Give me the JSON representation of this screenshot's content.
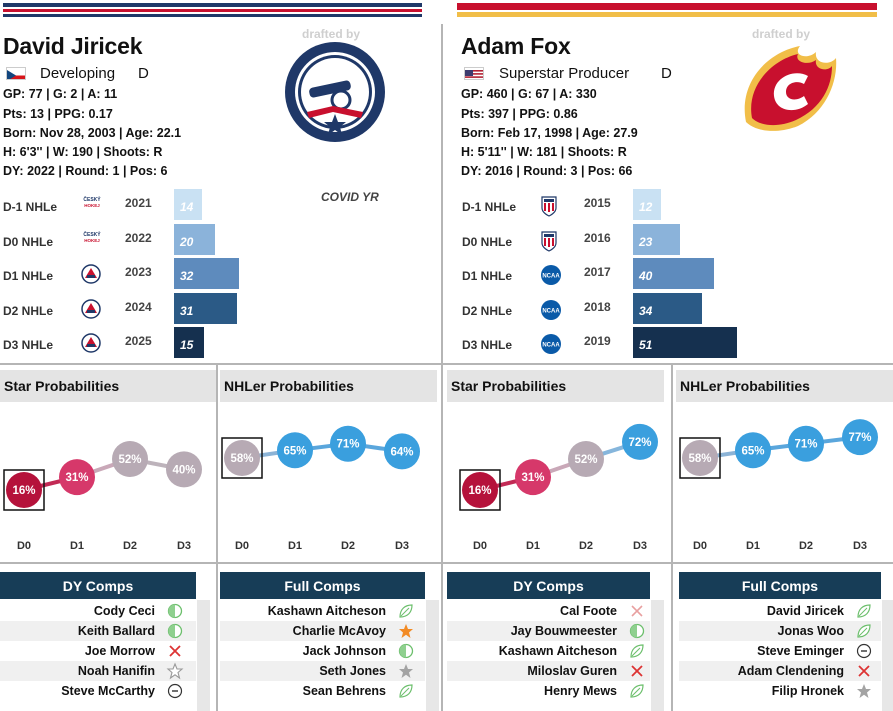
{
  "left": {
    "name": "David Jiricek",
    "flag": "czech-flag",
    "archetype": "Developing",
    "position": "D",
    "stats": [
      "GP: 77 | G: 2 | A: 11",
      "Pts: 13 | PPG: 0.17",
      "Born: Nov 28, 2003 | Age: 22.1",
      "H: 6'3'' | W: 190 | Shoots: R",
      "DY: 2022 | Round: 1 | Pos: 6"
    ],
    "drafted_by": "drafted by",
    "team_logo": "columbus-blue-jackets-logo",
    "note": "COVID YR",
    "nhle_rows": [
      {
        "label": "D-1 NHLe",
        "league": "czech-league-logo",
        "year": "2021",
        "value": 14
      },
      {
        "label": "D0 NHLe",
        "league": "czech-league-logo",
        "year": "2022",
        "value": 20
      },
      {
        "label": "D1 NHLe",
        "league": "ahl-logo",
        "year": "2023",
        "value": 32
      },
      {
        "label": "D2 NHLe",
        "league": "ahl-logo",
        "year": "2024",
        "value": 31
      },
      {
        "label": "D3 NHLe",
        "league": "ahl-logo",
        "year": "2025",
        "value": 15
      }
    ],
    "star_title": "Star Probabilities",
    "star": [
      {
        "d": "D0",
        "v": 16
      },
      {
        "d": "D1",
        "v": 31
      },
      {
        "d": "D2",
        "v": 52
      },
      {
        "d": "D3",
        "v": 40
      }
    ],
    "nhler_title": "NHLer Probabilities",
    "nhler": [
      {
        "d": "D0",
        "v": 58
      },
      {
        "d": "D1",
        "v": 65
      },
      {
        "d": "D2",
        "v": 71
      },
      {
        "d": "D3",
        "v": 64
      }
    ],
    "dy_title": "DY Comps",
    "dy_comps": [
      {
        "name": "Cody Ceci",
        "icon": "half-circle-icon"
      },
      {
        "name": "Keith Ballard",
        "icon": "half-circle-icon"
      },
      {
        "name": "Joe Morrow",
        "icon": "x-icon"
      },
      {
        "name": "Noah Hanifin",
        "icon": "star-outline-icon"
      },
      {
        "name": "Steve McCarthy",
        "icon": "minus-circle-icon"
      }
    ],
    "full_title": "Full Comps",
    "full_comps": [
      {
        "name": "Kashawn Aitcheson",
        "icon": "leaf-icon"
      },
      {
        "name": "Charlie McAvoy",
        "icon": "star-orange-icon"
      },
      {
        "name": "Jack Johnson",
        "icon": "half-circle-icon"
      },
      {
        "name": "Seth Jones",
        "icon": "star-gray-icon"
      },
      {
        "name": "Sean Behrens",
        "icon": "leaf-icon"
      }
    ]
  },
  "right": {
    "name": "Adam Fox",
    "flag": "usa-flag",
    "archetype": "Superstar Producer",
    "position": "D",
    "stats": [
      "GP: 460 | G: 67 | A: 330",
      "Pts: 397 | PPG: 0.86",
      "Born: Feb 17, 1998 | Age: 27.9",
      "H: 5'11'' | W: 181 | Shoots: R",
      "DY: 2016 | Round: 3 | Pos: 66"
    ],
    "drafted_by": "drafted by",
    "team_logo": "calgary-flames-logo",
    "nhle_rows": [
      {
        "label": "D-1 NHLe",
        "league": "usntdp-logo",
        "year": "2015",
        "value": 12
      },
      {
        "label": "D0 NHLe",
        "league": "usntdp-logo",
        "year": "2016",
        "value": 23
      },
      {
        "label": "D1 NHLe",
        "league": "ncaa-logo",
        "year": "2017",
        "value": 40
      },
      {
        "label": "D2 NHLe",
        "league": "ncaa-logo",
        "year": "2018",
        "value": 34
      },
      {
        "label": "D3 NHLe",
        "league": "ncaa-logo",
        "year": "2019",
        "value": 51
      }
    ],
    "star_title": "Star Probabilities",
    "star": [
      {
        "d": "D0",
        "v": 16
      },
      {
        "d": "D1",
        "v": 31
      },
      {
        "d": "D2",
        "v": 52
      },
      {
        "d": "D3",
        "v": 72
      }
    ],
    "nhler_title": "NHLer Probabilities",
    "nhler": [
      {
        "d": "D0",
        "v": 58
      },
      {
        "d": "D1",
        "v": 65
      },
      {
        "d": "D2",
        "v": 71
      },
      {
        "d": "D3",
        "v": 77
      }
    ],
    "dy_title": "DY Comps",
    "dy_comps": [
      {
        "name": "Cal Foote",
        "icon": "x-light-icon"
      },
      {
        "name": "Jay Bouwmeester",
        "icon": "half-circle-icon"
      },
      {
        "name": "Kashawn Aitcheson",
        "icon": "leaf-icon"
      },
      {
        "name": "Miloslav Guren",
        "icon": "x-icon"
      },
      {
        "name": "Henry Mews",
        "icon": "leaf-icon"
      }
    ],
    "full_title": "Full Comps",
    "full_comps": [
      {
        "name": "David Jiricek",
        "icon": "leaf-icon"
      },
      {
        "name": "Jonas Woo",
        "icon": "leaf-icon"
      },
      {
        "name": "Steve Eminger",
        "icon": "minus-circle-icon"
      },
      {
        "name": "Adam Clendening",
        "icon": "x-icon"
      },
      {
        "name": "Filip Hronek",
        "icon": "star-gray-icon"
      }
    ]
  },
  "colors": {
    "cbj_navy": "#1f3868",
    "cbj_red": "#c8102e",
    "cgy_red": "#c8102e",
    "cgy_yellow": "#f1be48",
    "navy_header": "#173d57"
  }
}
